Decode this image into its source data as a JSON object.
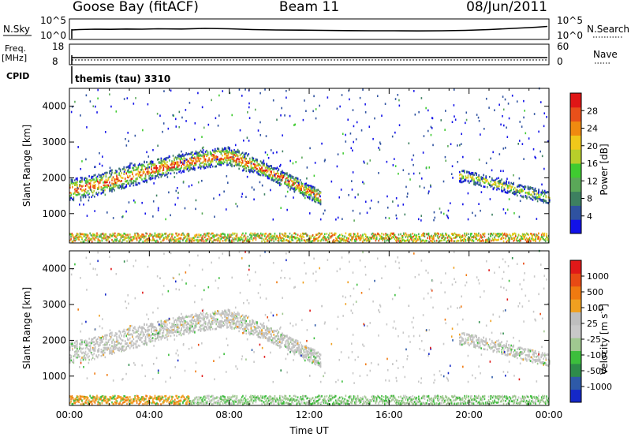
{
  "header": {
    "station": "Goose Bay (fitACF)",
    "beam": "Beam 11",
    "date": "08/Jun/2011"
  },
  "top_panels": {
    "nsky_label": "N.Sky",
    "nsky_ticks": [
      "10^5",
      "10^0"
    ],
    "nsearch_label": "N.Search",
    "nsearch_ticks": [
      "10^5",
      "10^0"
    ],
    "freq_label": "Freq.",
    "freq_unit": "[MHz]",
    "freq_ticks": [
      "18",
      "8"
    ],
    "nave_label": "Nave",
    "nave_ticks": [
      "60",
      "0"
    ],
    "cpid_label": "CPID",
    "cpid_value": "themis (tau) 3310"
  },
  "chart_data": [
    {
      "type": "heatmap",
      "title": "",
      "quantity": "Power",
      "xlabel": "",
      "ylabel": "Slant Range [km]",
      "xlim": [
        "00:00",
        "24:00"
      ],
      "ylim": [
        180,
        4500
      ],
      "y_ticks": [
        "4000",
        "3000",
        "2000",
        "1000"
      ],
      "colorbar_label": "Power [dB]",
      "colorbar_ticks": [
        "28",
        "24",
        "20",
        "16",
        "12",
        "8",
        "4"
      ],
      "colorbar_colors": [
        "#1212e8",
        "#2f52a0",
        "#3d8060",
        "#5aa858",
        "#3fcb30",
        "#b8ce2a",
        "#f0c81a",
        "#f08a10",
        "#e8501a",
        "#e01616"
      ],
      "echo_bands": [
        {
          "t": [
            0.0,
            1.0,
            2.0,
            3.0,
            4.0,
            5.0,
            6.0,
            7.0,
            8.0,
            9.0,
            10.0,
            11.0,
            12.0,
            12.5
          ],
          "r": [
            1650,
            1750,
            1900,
            2050,
            2200,
            2350,
            2450,
            2550,
            2600,
            2400,
            2150,
            1900,
            1600,
            1450
          ],
          "level": "strong"
        },
        {
          "t": [
            19.5,
            20.5,
            21.5,
            22.5,
            23.5,
            24.0
          ],
          "r": [
            2050,
            1950,
            1800,
            1650,
            1500,
            1450
          ],
          "level": "medium"
        },
        {
          "t": [
            0.0,
            24.0
          ],
          "r": [
            330,
            300
          ],
          "level": "ground"
        }
      ]
    },
    {
      "type": "heatmap",
      "title": "",
      "quantity": "Velocity",
      "xlabel": "Time UT",
      "ylabel": "Slant Range [km]",
      "xlim": [
        "00:00",
        "24:00"
      ],
      "ylim": [
        180,
        4500
      ],
      "x_ticks": [
        "00:00",
        "04:00",
        "08:00",
        "12:00",
        "16:00",
        "20:00",
        "00:00"
      ],
      "y_ticks": [
        "4000",
        "3000",
        "2000",
        "1000"
      ],
      "colorbar_label": "Velocity [m s",
      "colorbar_label_sup": "-1",
      "colorbar_label_end": "]",
      "colorbar_ticks": [
        "1000",
        "500",
        "100",
        "25",
        "-25",
        "-100",
        "-500",
        "-1000"
      ],
      "colorbar_colors": [
        "#1428c8",
        "#2e5aa8",
        "#2e8c4a",
        "#3cbe3c",
        "#a0c890",
        "#c8c8c8",
        "#bebebe",
        "#f0a020",
        "#f07a10",
        "#e84a14",
        "#e01818"
      ]
    }
  ]
}
